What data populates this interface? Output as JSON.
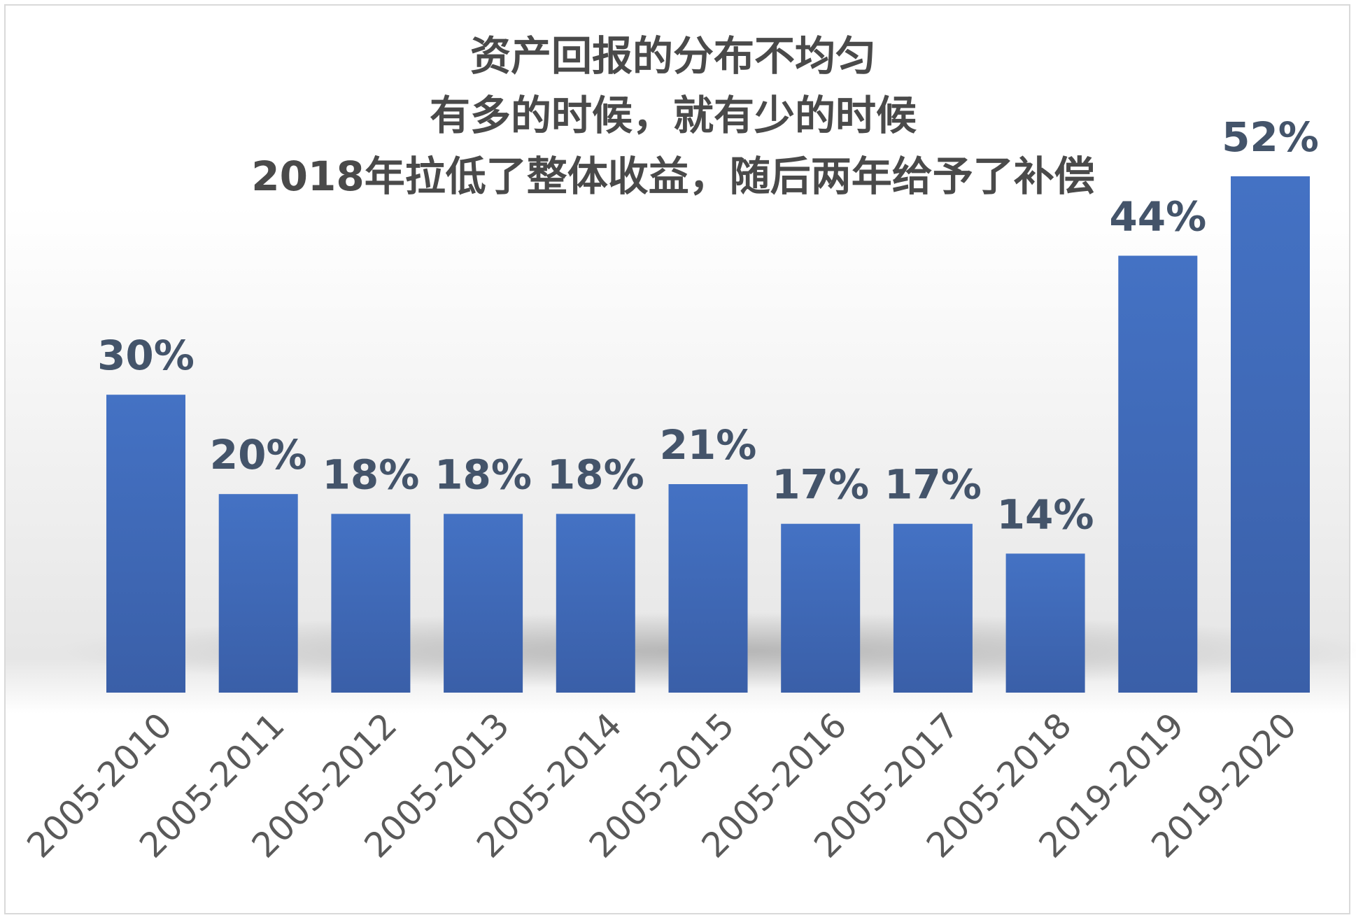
{
  "chart_data": {
    "type": "bar",
    "title_lines": [
      "资产回报的分布不均匀",
      "有多的时候，就有少的时候",
      "2018年拉低了整体收益，随后两年给予了补偿"
    ],
    "categories": [
      "2005-2010",
      "2005-2011",
      "2005-2012",
      "2005-2013",
      "2005-2014",
      "2005-2015",
      "2005-2016",
      "2005-2017",
      "2005-2018",
      "2019-2019",
      "2019-2020"
    ],
    "values": [
      30,
      20,
      18,
      18,
      18,
      21,
      17,
      17,
      14,
      44,
      52
    ],
    "data_labels": [
      "30%",
      "20%",
      "18%",
      "18%",
      "18%",
      "21%",
      "17%",
      "17%",
      "14%",
      "44%",
      "52%"
    ],
    "unit": "%",
    "ylim": [
      0,
      52
    ],
    "grid": false,
    "legend": "none",
    "colors": {
      "bar": "#4472c4",
      "bar_dark": "#3a5fa8",
      "title": "#4a4a4a",
      "data_label": "#44546a",
      "tick": "#595959"
    }
  }
}
